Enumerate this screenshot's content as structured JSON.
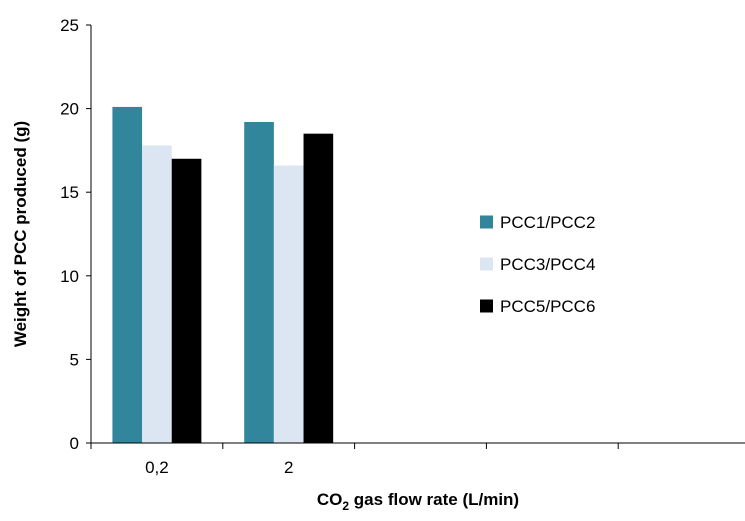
{
  "chart_data": {
    "type": "bar",
    "categories": [
      "0,2",
      "2",
      "",
      "",
      ""
    ],
    "series": [
      {
        "name": "PCC1/PCC2",
        "values": [
          20.1,
          19.2,
          null,
          null,
          null
        ],
        "color": "#31869B"
      },
      {
        "name": "PCC3/PCC4",
        "values": [
          17.8,
          16.6,
          null,
          null,
          null
        ],
        "color": "#DCE6F2"
      },
      {
        "name": "PCC5/PCC6",
        "values": [
          17.0,
          18.5,
          null,
          null,
          null
        ],
        "color": "#000000"
      }
    ],
    "yticks": [
      "0",
      "5",
      "10",
      "15",
      "20",
      "25"
    ],
    "ylim": [
      0,
      25
    ],
    "xlabel": {
      "main": "CO",
      "sub": "2",
      "rest": " gas flow rate (L/min)"
    },
    "ylabel": "Weight of PCC produced (g)",
    "legend_position": "right",
    "grid": false
  }
}
